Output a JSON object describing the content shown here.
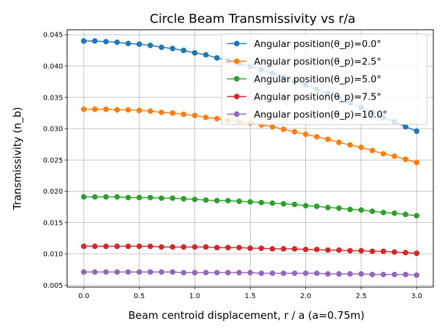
{
  "chart_data": {
    "type": "line",
    "title": "Circle Beam Transmissivity vs r/a",
    "xlabel": "Beam centroid displacement,  r / a (a=0.75m)",
    "ylabel": "Transmissivity (n_b)",
    "xlim": [
      -0.15,
      3.15
    ],
    "ylim": [
      0.0047,
      0.0458
    ],
    "xticks": [
      "0.0",
      "0.5",
      "1.0",
      "1.5",
      "2.0",
      "2.5",
      "3.0"
    ],
    "yticks": [
      "0.005",
      "0.010",
      "0.015",
      "0.020",
      "0.025",
      "0.030",
      "0.035",
      "0.040",
      "0.045"
    ],
    "grid": true,
    "legend_position": "top-right",
    "x": [
      0.0,
      0.1,
      0.2,
      0.3,
      0.4,
      0.5,
      0.6,
      0.7,
      0.8,
      0.9,
      1.0,
      1.1,
      1.2,
      1.3,
      1.4,
      1.5,
      1.6,
      1.7,
      1.8,
      1.9,
      2.0,
      2.1,
      2.2,
      2.3,
      2.4,
      2.5,
      2.6,
      2.7,
      2.8,
      2.9,
      3.0
    ],
    "series": [
      {
        "name": "Angular position(θ_p)=0.0°",
        "color": "#1f77b4",
        "values": [
          0.044,
          0.044,
          0.0439,
          0.0438,
          0.0436,
          0.0435,
          0.0433,
          0.043,
          0.0428,
          0.0425,
          0.0421,
          0.0418,
          0.0413,
          0.0409,
          0.0404,
          0.0399,
          0.0394,
          0.0388,
          0.0382,
          0.0376,
          0.037,
          0.0363,
          0.0356,
          0.0349,
          0.0341,
          0.0334,
          0.0326,
          0.0318,
          0.0311,
          0.0303,
          0.0296
        ]
      },
      {
        "name": "Angular position(θ_p)=2.5°",
        "color": "#ff7f0e",
        "values": [
          0.0331,
          0.0331,
          0.0331,
          0.033,
          0.033,
          0.0329,
          0.0328,
          0.0326,
          0.0325,
          0.0323,
          0.0321,
          0.0318,
          0.0316,
          0.0313,
          0.0311,
          0.0309,
          0.0306,
          0.0303,
          0.0299,
          0.0295,
          0.0291,
          0.0287,
          0.0283,
          0.0278,
          0.0274,
          0.027,
          0.0265,
          0.026,
          0.0256,
          0.0251,
          0.0246
        ]
      },
      {
        "name": "Angular position(θ_p)=5.0°",
        "color": "#2ca02c",
        "values": [
          0.0191,
          0.0191,
          0.0191,
          0.0191,
          0.019,
          0.019,
          0.019,
          0.0189,
          0.0189,
          0.0188,
          0.0187,
          0.0186,
          0.0185,
          0.0185,
          0.0184,
          0.0183,
          0.0182,
          0.0181,
          0.018,
          0.0179,
          0.0177,
          0.0176,
          0.0174,
          0.0173,
          0.0171,
          0.017,
          0.0168,
          0.0166,
          0.0165,
          0.0163,
          0.0161
        ]
      },
      {
        "name": "Angular position(θ_p)=7.5°",
        "color": "#d62728",
        "values": [
          0.0112,
          0.0112,
          0.0112,
          0.0112,
          0.0112,
          0.0112,
          0.0112,
          0.0111,
          0.0111,
          0.0111,
          0.0111,
          0.0111,
          0.011,
          0.011,
          0.011,
          0.0109,
          0.0109,
          0.0108,
          0.0108,
          0.0108,
          0.0107,
          0.0107,
          0.0106,
          0.0106,
          0.0105,
          0.0105,
          0.0104,
          0.0104,
          0.0103,
          0.0102,
          0.0101
        ]
      },
      {
        "name": "Angular position(θ_p)=10.0°",
        "color": "#9467bd",
        "values": [
          0.0071,
          0.0071,
          0.0071,
          0.0071,
          0.0071,
          0.0071,
          0.0071,
          0.0071,
          0.0071,
          0.007,
          0.007,
          0.007,
          0.007,
          0.007,
          0.007,
          0.007,
          0.0069,
          0.0069,
          0.0069,
          0.0069,
          0.0069,
          0.0069,
          0.0068,
          0.0068,
          0.0068,
          0.0068,
          0.0067,
          0.0067,
          0.0067,
          0.0067,
          0.0066
        ]
      }
    ]
  }
}
